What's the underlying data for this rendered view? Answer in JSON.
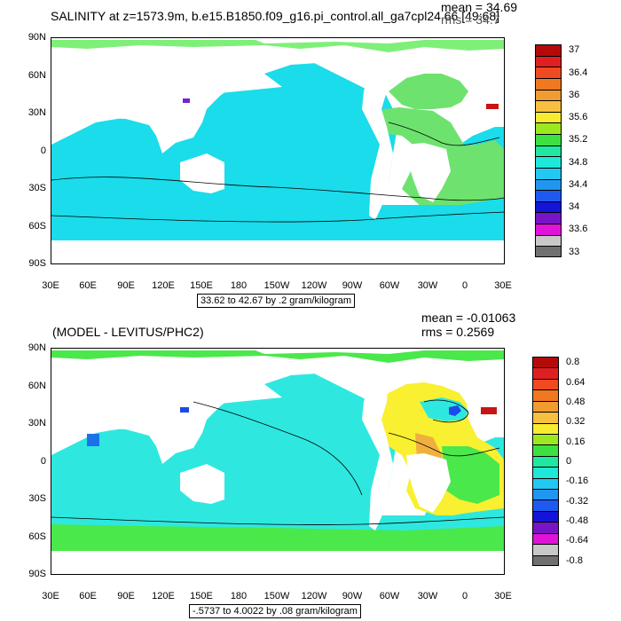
{
  "colors": {
    "sal_cyan": "#1adcea",
    "sal_green": "#6ee26e",
    "sal_light_green": "#7ef078",
    "dif_cyan": "#2ee8e0",
    "dif_green": "#4ae84a",
    "dif_yellow": "#f8f030",
    "dif_orange": "#f0b040",
    "blue": "#1a72e8",
    "purple": "#7a20d8",
    "red": "#c81414"
  },
  "panel1": {
    "title": "SALINITY at z=1573.9m, b.e15.B1850.f09_g16.pi_control.all_ga7cpl24.66 [49:68]",
    "mean": "mean = 34.69",
    "rms": "rms = 34.7",
    "range": "33.62 to 42.67 by .2 gram/kilogram",
    "colorbar": {
      "colors": [
        "#b40a0a",
        "#e02020",
        "#f04a20",
        "#f07820",
        "#f09c30",
        "#f8c040",
        "#f8ec30",
        "#9ce820",
        "#3ce040",
        "#20e8a0",
        "#20e8d8",
        "#22c8f0",
        "#2096f0",
        "#1e5af0",
        "#1414d8",
        "#7814c8",
        "#e014d8",
        "#c8c8c8",
        "#707070"
      ],
      "labels": [
        "37",
        "36.4",
        "36",
        "35.6",
        "35.2",
        "34.8",
        "34.4",
        "34",
        "33.6",
        "33"
      ]
    }
  },
  "panel2": {
    "title": "(MODEL - LEVITUS/PHC2)",
    "mean": "mean = -0.01063",
    "rms": "rms = 0.2569",
    "range": "-.5737 to 4.0022 by .08 gram/kilogram",
    "colorbar": {
      "colors": [
        "#b40a0a",
        "#e02020",
        "#f04a20",
        "#f07820",
        "#f09c30",
        "#f8c040",
        "#f8ec30",
        "#9ce820",
        "#3ce040",
        "#20e8a0",
        "#20e8d8",
        "#22c8f0",
        "#2096f0",
        "#1e5af0",
        "#1414d8",
        "#7814c8",
        "#e014d8",
        "#c8c8c8",
        "#707070"
      ],
      "labels": [
        "0.8",
        "0.64",
        "0.48",
        "0.32",
        "0.16",
        "0",
        "-0.16",
        "-0.32",
        "-0.48",
        "-0.64",
        "-0.8"
      ]
    }
  },
  "axes": {
    "lat_labels": [
      "90N",
      "60N",
      "30N",
      "0",
      "30S",
      "60S",
      "90S"
    ],
    "lon_labels": [
      "30E",
      "60E",
      "90E",
      "120E",
      "150E",
      "180",
      "150W",
      "120W",
      "90W",
      "60W",
      "30W",
      "0",
      "30E"
    ]
  }
}
